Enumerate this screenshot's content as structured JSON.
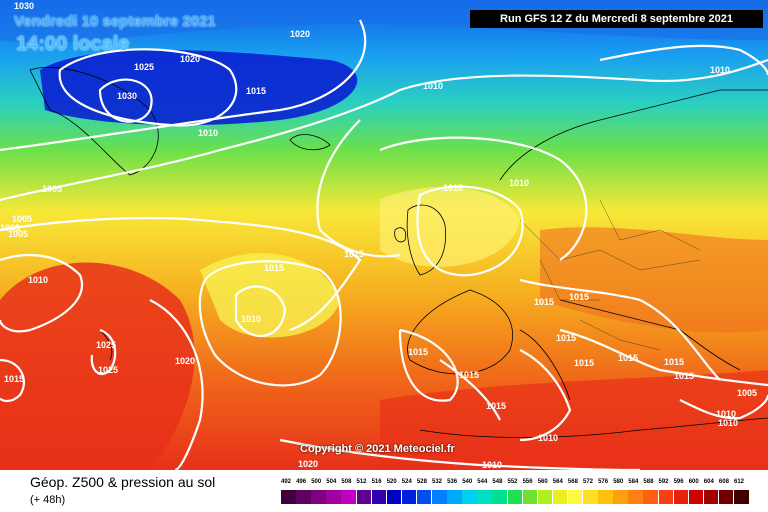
{
  "header": {
    "valid_date": "Vendredi 10 septembre 2021",
    "local_time": "14:00 locale",
    "run_info": "Run GFS 12 Z du Mercredi 8 septembre 2021"
  },
  "copyright": "Copyright © 2021 Meteociel.fr",
  "footer": {
    "field_title": "Géop. Z500 & pression au sol",
    "lead_time": "(+ 48h)"
  },
  "colors": {
    "low": "#0a20d0",
    "mid_low": "#1aa0f0",
    "mid": "#2ad0c0",
    "green": "#6ce04a",
    "yellow": "#f8e838",
    "orange": "#f69a1a",
    "red": "#e8301a"
  },
  "isobar_labels": [
    "1030",
    "1020",
    "1025",
    "1020",
    "1030",
    "1015",
    "1010",
    "1010",
    "1010",
    "1005",
    "1005",
    "1005",
    "1010",
    "1005",
    "1015",
    "1015",
    "1010",
    "1010",
    "1010",
    "1015",
    "1025",
    "1025",
    "1020",
    "1015",
    "1015",
    "1015",
    "1015",
    "1015",
    "1015",
    "1015",
    "1015",
    "1015",
    "1005",
    "1010",
    "1010",
    "1010",
    "1010",
    "1020",
    "1015"
  ],
  "scale": {
    "labels": [
      "492",
      "496",
      "500",
      "504",
      "508",
      "512",
      "516",
      "520",
      "524",
      "528",
      "532",
      "536",
      "540",
      "544",
      "548",
      "552",
      "556",
      "560",
      "564",
      "568",
      "572",
      "576",
      "580",
      "584",
      "588",
      "592",
      "596",
      "600",
      "604",
      "608",
      "612"
    ],
    "colors": [
      "#400040",
      "#600060",
      "#800080",
      "#a000a0",
      "#c000c0",
      "#600090",
      "#3000b0",
      "#0000c0",
      "#0020e0",
      "#0050f0",
      "#0080ff",
      "#00a8ff",
      "#00d0f0",
      "#00e0c0",
      "#00e090",
      "#20e050",
      "#70e030",
      "#b0f020",
      "#e8f020",
      "#fff840",
      "#ffe020",
      "#ffc010",
      "#ffa010",
      "#ff8010",
      "#ff6010",
      "#f84010",
      "#e82010",
      "#d00000",
      "#a00000",
      "#700000",
      "#400000"
    ]
  }
}
